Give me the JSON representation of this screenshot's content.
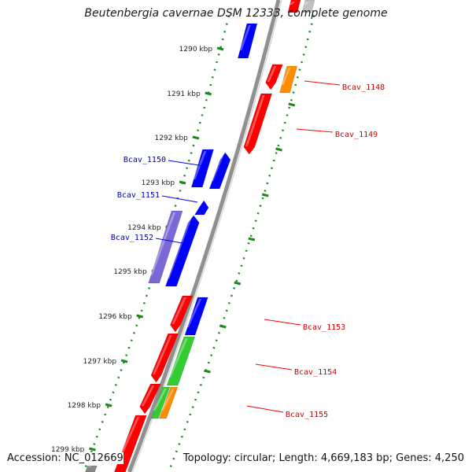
{
  "map": {
    "title": "Beutenbergia cavernae DSM 12333, complete genome",
    "accession_text": "Accession: NC_012669",
    "summary_text": "Topology: circular; Length: 4,669,183 bp; Genes: 4,250"
  },
  "scale": {
    "unit": "kbp",
    "ticks": [
      "1290 kbp",
      "1291 kbp",
      "1292 kbp",
      "1293 kbp",
      "1294 kbp",
      "1295 kbp",
      "1296 kbp",
      "1297 kbp",
      "1298 kbp",
      "1299 kbp"
    ]
  },
  "colors": {
    "forward_gene": "#ff0000",
    "reverse_gene": "#0000ff",
    "orange_gene": "#ff8c00",
    "green_gene": "#33cc33",
    "purple_gene": "#7b68d6",
    "gray_gene": "#888888",
    "backbone": "#909090",
    "dotted_guide": "#1a8a1a",
    "forward_label": "#cc0000",
    "reverse_label": "#0000aa"
  },
  "labels": {
    "forward": [
      "Bcav_1148",
      "Bcav_1149",
      "Bcav_1153",
      "Bcav_1154",
      "Bcav_1155"
    ],
    "reverse": [
      "Bcav_1150",
      "Bcav_1151",
      "Bcav_1152"
    ]
  }
}
